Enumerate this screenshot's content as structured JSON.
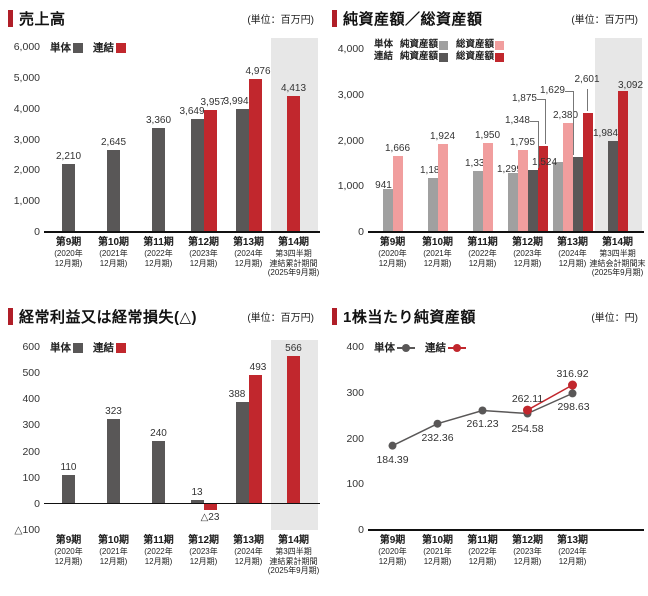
{
  "colors": {
    "red": "#c1272d",
    "dark": "#595757",
    "light_gray": "#a0a0a0",
    "pink": "#f19e9e",
    "highlight": "#e7e7e7",
    "accent": "#b01e28"
  },
  "chart_data": [
    {
      "type": "bar",
      "title": "売上高",
      "unit": "(単位：百万円)",
      "ylim": [
        0,
        6000
      ],
      "y_ticks": [
        "6,000",
        "5,000",
        "4,000",
        "3,000",
        "2,000",
        "1,000",
        "0"
      ],
      "legend": [
        {
          "label": "単体",
          "color": "#595757"
        },
        {
          "label": "連結",
          "color": "#c1272d"
        }
      ],
      "categories": [
        {
          "label": "第9期",
          "sub": [
            "(2020年",
            "12月期)"
          ]
        },
        {
          "label": "第10期",
          "sub": [
            "(2021年",
            "12月期)"
          ]
        },
        {
          "label": "第11期",
          "sub": [
            "(2022年",
            "12月期)"
          ]
        },
        {
          "label": "第12期",
          "sub": [
            "(2023年",
            "12月期)"
          ]
        },
        {
          "label": "第13期",
          "sub": [
            "(2024年",
            "12月期)"
          ]
        },
        {
          "label": "第14期",
          "sub": [
            "第3四半期",
            "連結累計期間",
            "(2025年9月期)"
          ]
        }
      ],
      "series": [
        {
          "name": "単体",
          "color": "#595757",
          "values": [
            2210,
            2645,
            3360,
            3649,
            3994,
            null
          ]
        },
        {
          "name": "連結",
          "color": "#c1272d",
          "values": [
            null,
            null,
            null,
            3957,
            4976,
            4413
          ]
        }
      ],
      "highlight_column": 5
    },
    {
      "type": "bar",
      "title": "純資産額／総資産額",
      "unit": "(単位：百万円)",
      "ylim": [
        0,
        4000
      ],
      "y_ticks": [
        "4,000",
        "3,000",
        "2,000",
        "1,000",
        "0"
      ],
      "legend_rows": [
        {
          "group": "単体",
          "items": [
            {
              "label": "純資産額",
              "color": "#a0a0a0"
            },
            {
              "label": "総資産額",
              "color": "#f19e9e"
            }
          ]
        },
        {
          "group": "連結",
          "items": [
            {
              "label": "純資産額",
              "color": "#595757"
            },
            {
              "label": "総資産額",
              "color": "#c1272d"
            }
          ]
        }
      ],
      "categories": [
        {
          "label": "第9期",
          "sub": [
            "(2020年",
            "12月期)"
          ]
        },
        {
          "label": "第10期",
          "sub": [
            "(2021年",
            "12月期)"
          ]
        },
        {
          "label": "第11期",
          "sub": [
            "(2022年",
            "12月期)"
          ]
        },
        {
          "label": "第12期",
          "sub": [
            "(2023年",
            "12月期)"
          ]
        },
        {
          "label": "第13期",
          "sub": [
            "(2024年",
            "12月期)"
          ]
        },
        {
          "label": "第14期",
          "sub": [
            "第3四半期",
            "連結会計期間末",
            "(2025年9月期)"
          ]
        }
      ],
      "series": [
        {
          "name": "単体 純資産額",
          "color": "#a0a0a0",
          "values": [
            941,
            1186,
            1333,
            1299,
            1524,
            null
          ]
        },
        {
          "name": "単体 総資産額",
          "color": "#f19e9e",
          "values": [
            1666,
            1924,
            1950,
            1795,
            2380,
            null
          ]
        },
        {
          "name": "連結 純資産額",
          "color": "#595757",
          "values": [
            null,
            null,
            null,
            1348,
            1629,
            1984
          ]
        },
        {
          "name": "連結 総資産額",
          "color": "#c1272d",
          "values": [
            null,
            null,
            null,
            1875,
            2601,
            3092
          ]
        }
      ],
      "highlight_column": 5
    },
    {
      "type": "bar",
      "title": "経常利益又は経常損失(△)",
      "unit": "(単位：百万円)",
      "ylim": [
        -100,
        600
      ],
      "y_ticks": [
        "600",
        "500",
        "400",
        "300",
        "200",
        "100",
        "0",
        "△100"
      ],
      "legend": [
        {
          "label": "単体",
          "color": "#595757"
        },
        {
          "label": "連結",
          "color": "#c1272d"
        }
      ],
      "categories": [
        {
          "label": "第9期",
          "sub": [
            "(2020年",
            "12月期)"
          ]
        },
        {
          "label": "第10期",
          "sub": [
            "(2021年",
            "12月期)"
          ]
        },
        {
          "label": "第11期",
          "sub": [
            "(2022年",
            "12月期)"
          ]
        },
        {
          "label": "第12期",
          "sub": [
            "(2023年",
            "12月期)"
          ]
        },
        {
          "label": "第13期",
          "sub": [
            "(2024年",
            "12月期)"
          ]
        },
        {
          "label": "第14期",
          "sub": [
            "第3四半期",
            "連結累計期間",
            "(2025年9月期)"
          ]
        }
      ],
      "series": [
        {
          "name": "単体",
          "color": "#595757",
          "values": [
            110,
            323,
            240,
            13,
            388,
            null
          ]
        },
        {
          "name": "連結",
          "color": "#c1272d",
          "values": [
            null,
            null,
            null,
            -23,
            493,
            566
          ]
        }
      ],
      "highlight_column": 5
    },
    {
      "type": "line",
      "title": "1株当たり純資産額",
      "unit": "(単位：円)",
      "ylim": [
        0,
        400
      ],
      "decimals": 2,
      "y_ticks": [
        "400",
        "300",
        "200",
        "100",
        "0"
      ],
      "legend": [
        {
          "label": "単体",
          "color": "#595757"
        },
        {
          "label": "連結",
          "color": "#c1272d"
        }
      ],
      "categories": [
        {
          "label": "第9期",
          "sub": [
            "(2020年",
            "12月期)"
          ]
        },
        {
          "label": "第10期",
          "sub": [
            "(2021年",
            "12月期)"
          ]
        },
        {
          "label": "第11期",
          "sub": [
            "(2022年",
            "12月期)"
          ]
        },
        {
          "label": "第12期",
          "sub": [
            "(2023年",
            "12月期)"
          ]
        },
        {
          "label": "第13期",
          "sub": [
            "(2024年",
            "12月期)"
          ]
        }
      ],
      "series": [
        {
          "name": "単体",
          "color": "#595757",
          "values": [
            184.39,
            232.36,
            261.23,
            254.58,
            298.63
          ]
        },
        {
          "name": "連結",
          "color": "#c1272d",
          "values": [
            null,
            null,
            null,
            262.11,
            316.92
          ]
        }
      ],
      "highlight_column": null
    }
  ]
}
